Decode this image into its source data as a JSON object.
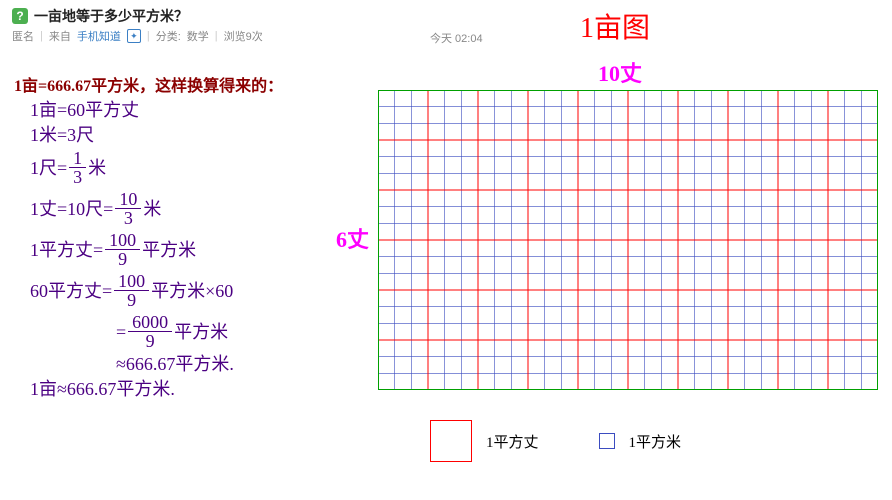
{
  "header": {
    "question_title": "一亩地等于多少平方米？",
    "meta_anon": "匿名",
    "meta_from_prefix": "来自",
    "meta_from_link": "手机知道",
    "meta_category_label": "分类:",
    "meta_category": "数学",
    "meta_views": "浏览9次",
    "timestamp": "今天 02:04"
  },
  "diagram": {
    "title": "1亩图",
    "title_color": "#ff0000",
    "label_top": "10丈",
    "label_left": "6丈",
    "label_color": "#ff00ff",
    "grid": {
      "outer_w": 500,
      "outer_h": 300,
      "cols_major": 10,
      "rows_major": 6,
      "minor_per_major": 3,
      "border_color": "#00a000",
      "border_w": 2,
      "major_color": "#ff0000",
      "major_w": 1,
      "minor_color": "#3b4cc0",
      "minor_w": 0.6
    },
    "legend": {
      "red_label": "1平方丈",
      "blue_label": "1平方米",
      "red_box_color": "#ff0000",
      "blue_box_color": "#3b4cc0"
    }
  },
  "heading": "1亩=666.67平方米，这样换算得来的：",
  "heading_color": "#8b0000",
  "derivation": {
    "color": "#4b0082",
    "l1": "1亩=60平方丈",
    "l2": "1米=3尺",
    "l3_pre": "1尺=",
    "l3_num": "1",
    "l3_den": "3",
    "l3_post": "米",
    "l4_pre": "1丈=10尺=",
    "l4_num": "10",
    "l4_den": "3",
    "l4_post": "米",
    "l5_pre": "1平方丈=",
    "l5_num": "100",
    "l5_den": "9",
    "l5_post": "平方米",
    "l6_pre": "60平方丈=",
    "l6_num": "100",
    "l6_den": "9",
    "l6_post": "平方米×60",
    "l7_pre": "=",
    "l7_num": "6000",
    "l7_den": "9",
    "l7_post": "平方米",
    "l8": "≈666.67平方米.",
    "l9": "1亩≈666.67平方米."
  }
}
